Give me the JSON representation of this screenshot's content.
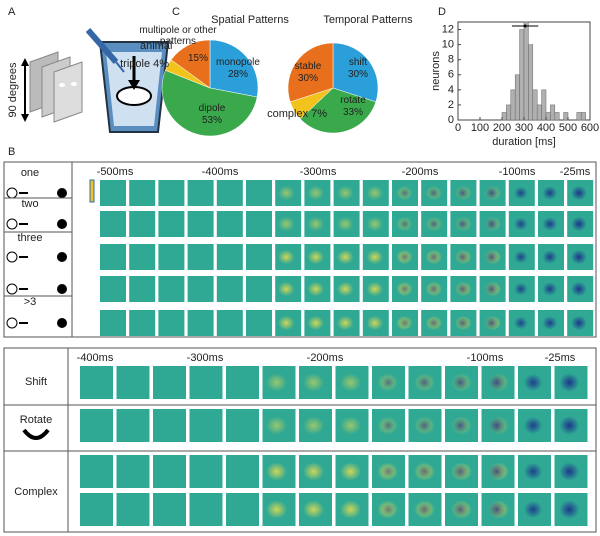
{
  "panel_labels": [
    "A",
    "B",
    "C",
    "D"
  ],
  "setup": {
    "animal_label": "animal",
    "stimulus_label": "90 degrees"
  },
  "chart_data": [
    {
      "type": "pie",
      "title": "Spatial Patterns",
      "categories": [
        "monopole",
        "dipole",
        "tripole",
        "multipole or other patterns"
      ],
      "values": [
        28,
        53,
        4,
        15
      ],
      "value_labels": [
        "28%",
        "53%",
        "4%",
        "15%"
      ],
      "colors": [
        "#2b9fd9",
        "#3aa94b",
        "#f2c21d",
        "#e8701c"
      ]
    },
    {
      "type": "pie",
      "title": "Temporal Patterns",
      "categories": [
        "shift",
        "rotate",
        "complex",
        "stable"
      ],
      "values": [
        30,
        33,
        7,
        30
      ],
      "value_labels": [
        "30%",
        "33%",
        "7%",
        "30%"
      ],
      "colors": [
        "#2b9fd9",
        "#3aa94b",
        "#f2c21d",
        "#e8701c"
      ]
    },
    {
      "type": "histogram",
      "xlabel": "duration [ms]",
      "ylabel": "neurons",
      "bins": [
        200,
        220,
        240,
        260,
        280,
        300,
        320,
        340,
        360,
        380,
        400,
        420,
        440,
        460,
        480,
        500,
        520,
        540,
        560,
        580
      ],
      "counts": [
        1,
        2,
        4,
        6,
        12,
        13,
        10,
        4,
        2,
        4,
        1,
        2,
        1,
        0,
        1,
        0,
        0,
        1,
        1
      ],
      "color": "#b0b0b0",
      "xlim": [
        0,
        600
      ],
      "xticks": [
        0,
        100,
        200,
        300,
        400,
        500,
        600
      ],
      "ylim": [
        0,
        13
      ],
      "yticks": [
        0,
        2,
        4,
        6,
        8,
        10,
        12
      ],
      "mean_marker": {
        "value": 305,
        "error": 60
      }
    }
  ],
  "sequences_top": {
    "time_labels": [
      "-500ms",
      "-400ms",
      "-300ms",
      "-200ms",
      "-100ms",
      "-25ms"
    ],
    "rows": [
      "one",
      "two",
      "three",
      ">3"
    ]
  },
  "sequences_bottom": {
    "time_labels": [
      "-400ms",
      "-300ms",
      "-200ms",
      "-100ms",
      "-25ms"
    ],
    "rows": [
      "Shift",
      "Rotate",
      "Complex"
    ]
  }
}
